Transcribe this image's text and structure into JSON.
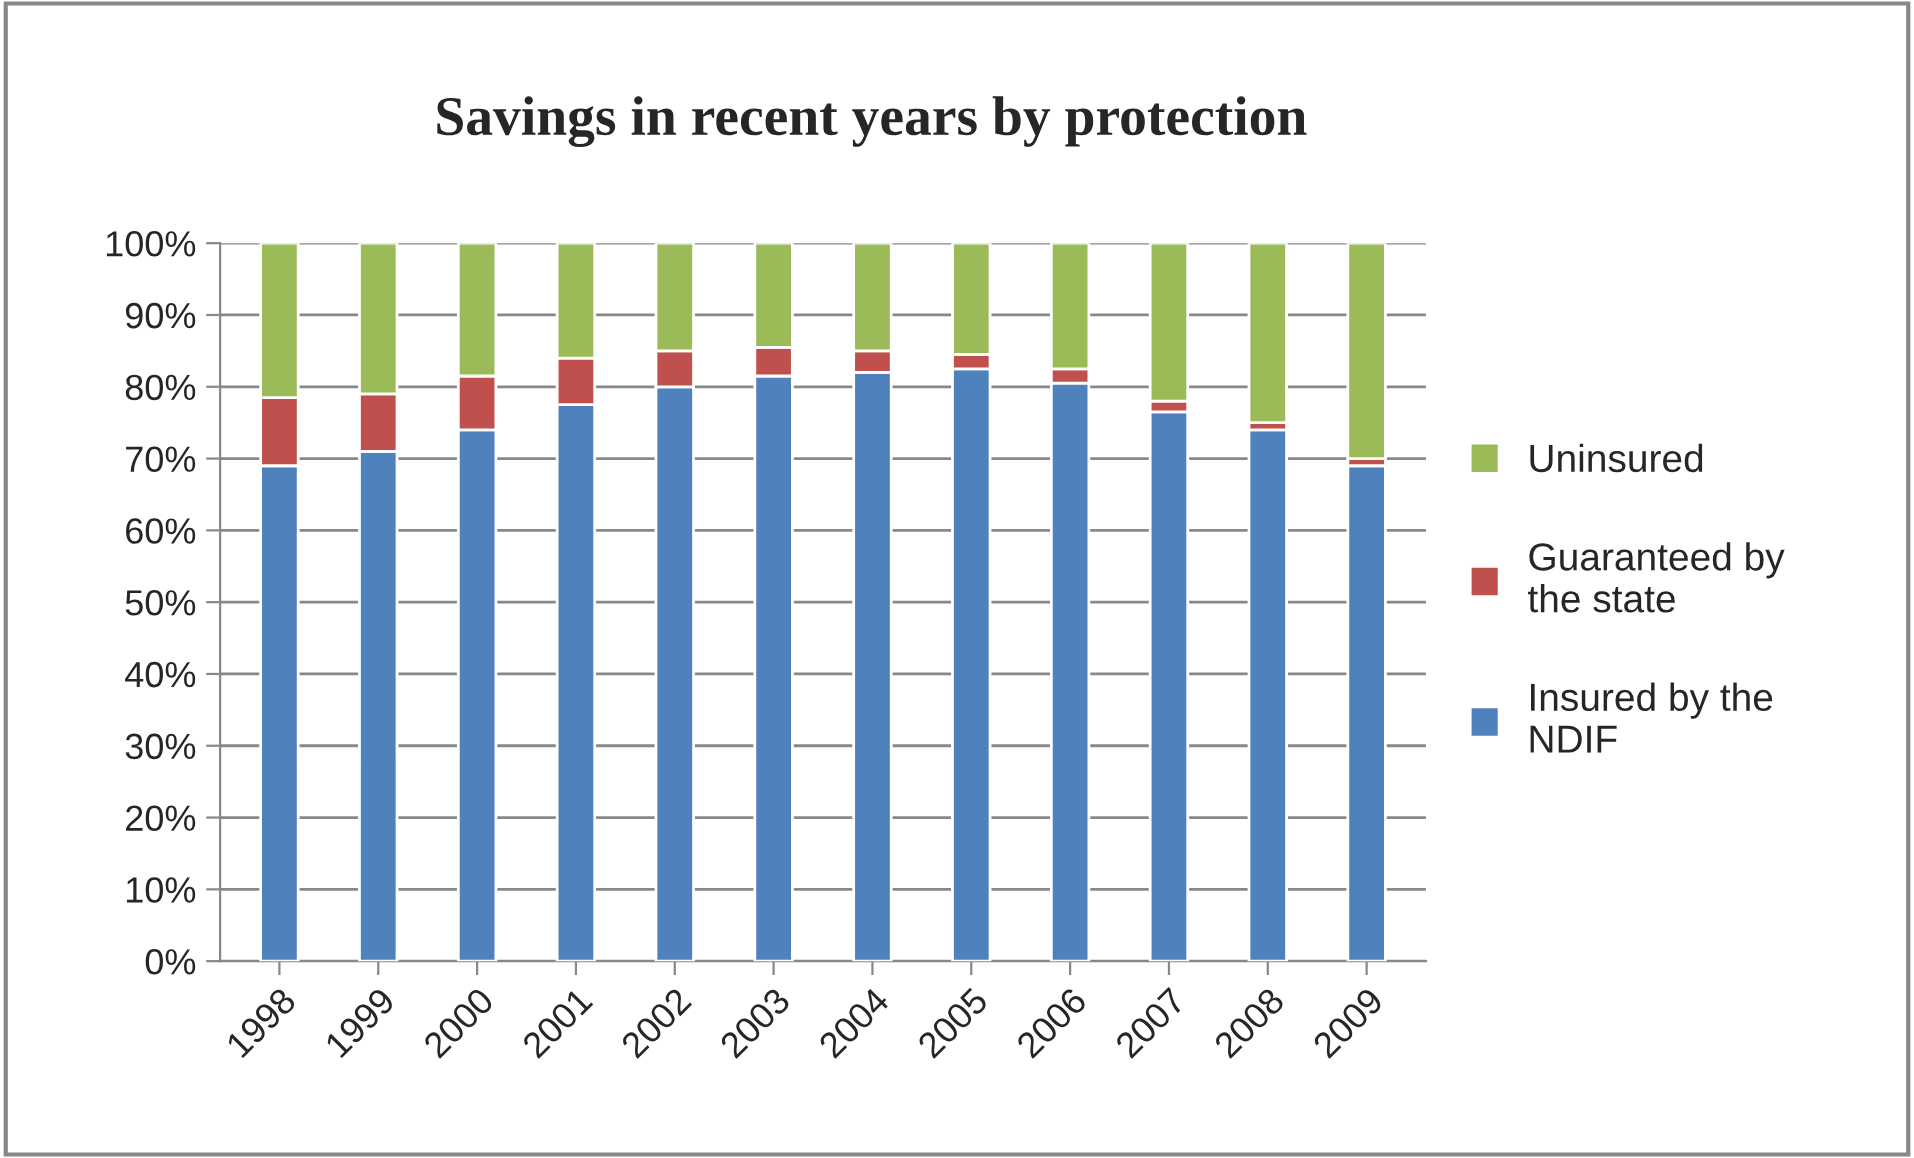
{
  "chart_data": {
    "type": "bar",
    "title": "Savings in recent years by protection",
    "stacked": true,
    "categories": [
      "1998",
      "1999",
      "2000",
      "2001",
      "2002",
      "2003",
      "2004",
      "2005",
      "2006",
      "2007",
      "2008",
      "2009"
    ],
    "series": [
      {
        "name": "Insured by the NDIF",
        "color": "#4f81bd",
        "values": [
          69,
          71,
          74,
          77.5,
          80,
          81.5,
          82,
          82.5,
          80.5,
          76.5,
          74,
          69
        ]
      },
      {
        "name": "Guaranteed by the state",
        "color": "#c0504d",
        "values": [
          9.5,
          8,
          7.5,
          6.5,
          5,
          4,
          3,
          2,
          2,
          1.5,
          1,
          1
        ]
      },
      {
        "name": "Uninsured",
        "color": "#9bbb59",
        "values": [
          21.5,
          21,
          18.5,
          16,
          15,
          14.5,
          15,
          15.5,
          17.5,
          22,
          25,
          30
        ]
      }
    ],
    "ylim": [
      0,
      100
    ],
    "yticks": [
      {
        "value": 0,
        "label": "0%"
      },
      {
        "value": 10,
        "label": "10%"
      },
      {
        "value": 20,
        "label": "20%"
      },
      {
        "value": 30,
        "label": "30%"
      },
      {
        "value": 40,
        "label": "40%"
      },
      {
        "value": 50,
        "label": "50%"
      },
      {
        "value": 60,
        "label": "60%"
      },
      {
        "value": 70,
        "label": "70%"
      },
      {
        "value": 80,
        "label": "80%"
      },
      {
        "value": 90,
        "label": "90%"
      },
      {
        "value": 100,
        "label": "100%"
      }
    ],
    "grid": "y",
    "legend": "right"
  }
}
